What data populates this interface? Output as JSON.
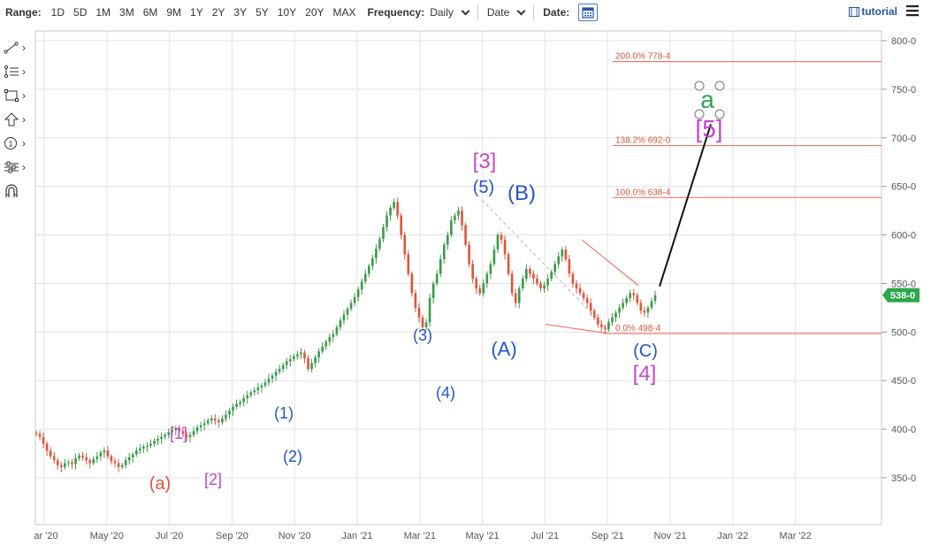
{
  "toolbar": {
    "range_label": "Range:",
    "ranges": [
      "1D",
      "5D",
      "1M",
      "3M",
      "6M",
      "9M",
      "1Y",
      "2Y",
      "3Y",
      "5Y",
      "10Y",
      "20Y",
      "MAX"
    ],
    "frequency_label": "Frequency:",
    "frequency_value": "Daily",
    "date_select_value": "Date",
    "date_label": "Date:",
    "tutorial_label": "tutorial"
  },
  "sidebar": {
    "tools": [
      "line-tool-icon",
      "text-list-tool-icon",
      "rectangle-tool-icon",
      "arrow-up-tool-icon",
      "numbered-circle-tool-icon",
      "settings-tool-icon",
      "magnet-tool-icon"
    ]
  },
  "colors": {
    "up": "#3a9a4a",
    "down": "#e0553a",
    "wave_blue": "#2456c9",
    "wave_magenta": "#c548c9",
    "wave_orange": "#e0553a",
    "wave_green": "#2aa84a",
    "fib_line": "#f07a6a",
    "price_badge": "#2aa84a"
  },
  "chart_data": {
    "type": "line",
    "title": "",
    "xlabel": "",
    "ylabel": "",
    "ylim": [
      305,
      808
    ],
    "x_ticks": [
      "ar '20",
      "May '20",
      "Jul '20",
      "Sep '20",
      "Nov '20",
      "Jan '21",
      "Mar '21",
      "May '21",
      "Jul '21",
      "Sep '21",
      "Nov '21",
      "Jan '22",
      "Mar '22"
    ],
    "y_ticks": [
      "800-0",
      "750-0",
      "700-0",
      "650-0",
      "600-0",
      "550-0",
      "500-0",
      "450-0",
      "400-0",
      "350-0"
    ],
    "current_price": "538-0",
    "series": [
      {
        "values": [
          395,
          392,
          385,
          378,
          372,
          368,
          363,
          361,
          365,
          366,
          364,
          370,
          373,
          371,
          368,
          365,
          369,
          372,
          376,
          378,
          372,
          367,
          365,
          361,
          363,
          368,
          371,
          374,
          378,
          380,
          382,
          383,
          385,
          388,
          390,
          392,
          394,
          397,
          399,
          401,
          398,
          395,
          392,
          394,
          398,
          402,
          404,
          406,
          409,
          411,
          409,
          407,
          411,
          415,
          419,
          423,
          426,
          428,
          432,
          435,
          438,
          440,
          443,
          445,
          448,
          452,
          455,
          459,
          462,
          466,
          470,
          472,
          475,
          477,
          479,
          473,
          462,
          468,
          474,
          480,
          485,
          490,
          495,
          498,
          505,
          512,
          518,
          524,
          530,
          536,
          544,
          552,
          560,
          568,
          576,
          586,
          596,
          608,
          620,
          628,
          634,
          620,
          600,
          580,
          560,
          540,
          525,
          515,
          505,
          510,
          535,
          550,
          560,
          575,
          590,
          600,
          615,
          620,
          625,
          610,
          590,
          570,
          555,
          545,
          540,
          550,
          560,
          570,
          585,
          600,
          595,
          580,
          560,
          540,
          530,
          545,
          555,
          565,
          560,
          555,
          550,
          545,
          548,
          555,
          562,
          570,
          578,
          585,
          575,
          560,
          550,
          545,
          540,
          535,
          530,
          522,
          515,
          508,
          505,
          503,
          510,
          515,
          520,
          525,
          530,
          535,
          540,
          538,
          530,
          522,
          520,
          525,
          532,
          538
        ]
      }
    ],
    "annotations": {
      "wave_labels": [
        {
          "text": "(a)",
          "color": "orange"
        },
        {
          "text": "[1]",
          "color": "magenta"
        },
        {
          "text": "[2]",
          "color": "magenta"
        },
        {
          "text": "(1)",
          "color": "blue"
        },
        {
          "text": "(2)",
          "color": "blue"
        },
        {
          "text": "(3)",
          "color": "blue"
        },
        {
          "text": "(4)",
          "color": "blue"
        },
        {
          "text": "[3]",
          "color": "magenta"
        },
        {
          "text": "(5)",
          "color": "blue"
        },
        {
          "text": "(B)",
          "color": "blue"
        },
        {
          "text": "(A)",
          "color": "blue"
        },
        {
          "text": "(C)",
          "color": "blue"
        },
        {
          "text": "[4]",
          "color": "magenta"
        },
        {
          "text": "a",
          "color": "green"
        },
        {
          "text": "[5]",
          "color": "magenta"
        }
      ],
      "fib_levels": [
        {
          "text": "200.0% 778-4",
          "value": 778.5
        },
        {
          "text": "138.2% 692-0",
          "value": 692
        },
        {
          "text": "100.0% 638-4",
          "value": 638.5
        },
        {
          "text": "0.0% 498-4",
          "value": 498.5
        }
      ]
    }
  }
}
